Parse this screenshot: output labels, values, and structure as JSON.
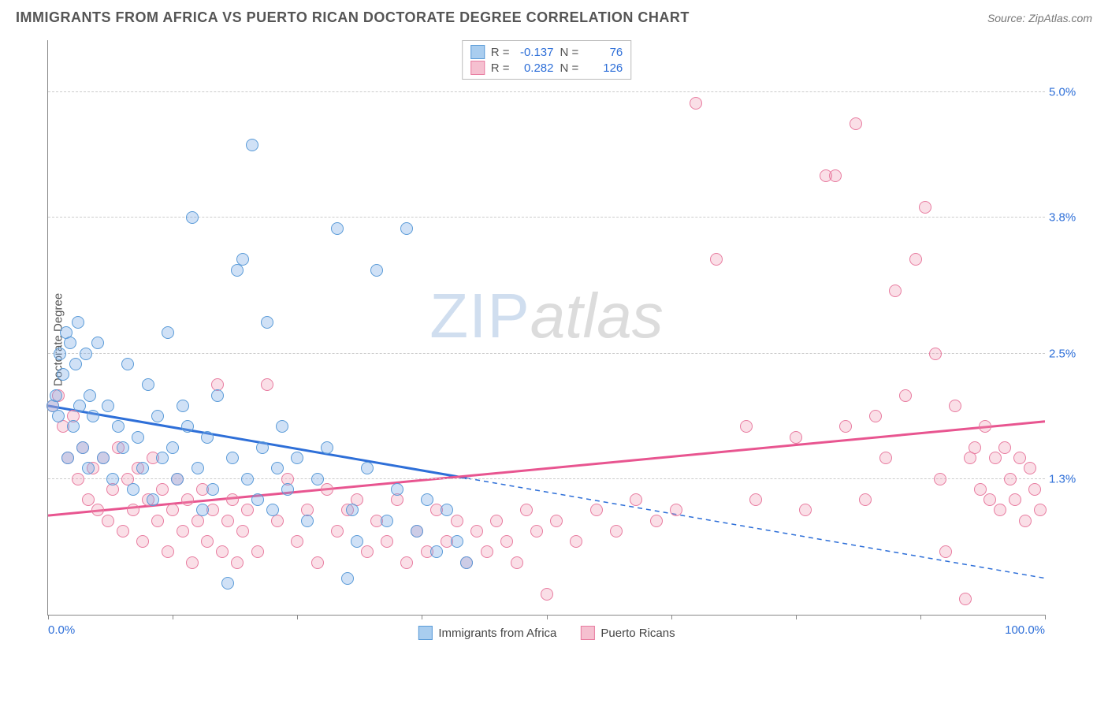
{
  "header": {
    "title": "IMMIGRANTS FROM AFRICA VS PUERTO RICAN DOCTORATE DEGREE CORRELATION CHART",
    "source_prefix": "Source: ",
    "source_name": "ZipAtlas.com"
  },
  "chart": {
    "type": "scatter",
    "ylabel": "Doctorate Degree",
    "xlim": [
      0,
      100
    ],
    "ylim": [
      0,
      5.5
    ],
    "background_color": "#ffffff",
    "grid_color": "#cccccc",
    "axis_color": "#888888",
    "tick_label_color": "#2e6fd8",
    "tick_fontsize": 15,
    "label_fontsize": 15,
    "yticks": [
      {
        "v": 1.3,
        "label": "1.3%"
      },
      {
        "v": 2.5,
        "label": "2.5%"
      },
      {
        "v": 3.8,
        "label": "3.8%"
      },
      {
        "v": 5.0,
        "label": "5.0%"
      }
    ],
    "xtick_positions": [
      0,
      12.5,
      25,
      37.5,
      50,
      62.5,
      75,
      87.5,
      100
    ],
    "xtick_labels": {
      "0": "0.0%",
      "100": "100.0%"
    },
    "watermark": {
      "zip": "ZIP",
      "atlas": "atlas"
    }
  },
  "series": {
    "africa": {
      "label": "Immigrants from Africa",
      "legend_label": "Immigrants from Africa",
      "fill": "rgba(120,170,230,0.35)",
      "stroke": "#5a9bd8",
      "swatch_fill": "#a9cdef",
      "swatch_border": "#5a9bd8",
      "marker_radius": 8,
      "R": "-0.137",
      "N": "76",
      "trend": {
        "y_at_x0": 2.0,
        "y_at_x100": 0.35,
        "solid_until_x": 42,
        "color": "#2e6fd8",
        "width": 3
      },
      "points": [
        [
          0.5,
          2.0
        ],
        [
          0.8,
          2.1
        ],
        [
          1.0,
          1.9
        ],
        [
          1.2,
          2.5
        ],
        [
          1.5,
          2.3
        ],
        [
          1.8,
          2.7
        ],
        [
          2.0,
          1.5
        ],
        [
          2.2,
          2.6
        ],
        [
          2.5,
          1.8
        ],
        [
          2.8,
          2.4
        ],
        [
          3.0,
          2.8
        ],
        [
          3.2,
          2.0
        ],
        [
          3.5,
          1.6
        ],
        [
          3.8,
          2.5
        ],
        [
          4.0,
          1.4
        ],
        [
          4.2,
          2.1
        ],
        [
          4.5,
          1.9
        ],
        [
          5.0,
          2.6
        ],
        [
          5.5,
          1.5
        ],
        [
          6.0,
          2.0
        ],
        [
          6.5,
          1.3
        ],
        [
          7.0,
          1.8
        ],
        [
          7.5,
          1.6
        ],
        [
          8.0,
          2.4
        ],
        [
          8.5,
          1.2
        ],
        [
          9.0,
          1.7
        ],
        [
          9.5,
          1.4
        ],
        [
          10.0,
          2.2
        ],
        [
          10.5,
          1.1
        ],
        [
          11.0,
          1.9
        ],
        [
          11.5,
          1.5
        ],
        [
          12.0,
          2.7
        ],
        [
          12.5,
          1.6
        ],
        [
          13.0,
          1.3
        ],
        [
          13.5,
          2.0
        ],
        [
          14.0,
          1.8
        ],
        [
          14.5,
          3.8
        ],
        [
          15.0,
          1.4
        ],
        [
          15.5,
          1.0
        ],
        [
          16.0,
          1.7
        ],
        [
          16.5,
          1.2
        ],
        [
          17.0,
          2.1
        ],
        [
          18.0,
          0.3
        ],
        [
          18.5,
          1.5
        ],
        [
          19.0,
          3.3
        ],
        [
          19.5,
          3.4
        ],
        [
          20.0,
          1.3
        ],
        [
          20.5,
          4.5
        ],
        [
          21.0,
          1.1
        ],
        [
          21.5,
          1.6
        ],
        [
          22.0,
          2.8
        ],
        [
          22.5,
          1.0
        ],
        [
          23.0,
          1.4
        ],
        [
          23.5,
          1.8
        ],
        [
          24.0,
          1.2
        ],
        [
          25.0,
          1.5
        ],
        [
          26.0,
          0.9
        ],
        [
          27.0,
          1.3
        ],
        [
          28.0,
          1.6
        ],
        [
          29.0,
          3.7
        ],
        [
          30.0,
          0.35
        ],
        [
          30.5,
          1.0
        ],
        [
          31.0,
          0.7
        ],
        [
          32.0,
          1.4
        ],
        [
          33.0,
          3.3
        ],
        [
          34.0,
          0.9
        ],
        [
          35.0,
          1.2
        ],
        [
          36.0,
          3.7
        ],
        [
          37.0,
          0.8
        ],
        [
          38.0,
          1.1
        ],
        [
          39.0,
          0.6
        ],
        [
          40.0,
          1.0
        ],
        [
          41.0,
          0.7
        ],
        [
          42.0,
          0.5
        ]
      ]
    },
    "pr": {
      "label": "Puerto Ricans",
      "legend_label": "Puerto Ricans",
      "fill": "rgba(240,150,175,0.3)",
      "stroke": "#e87ca0",
      "swatch_fill": "#f5c0d0",
      "swatch_border": "#e87ca0",
      "marker_radius": 8,
      "R": "0.282",
      "N": "126",
      "trend": {
        "y_at_x0": 0.95,
        "y_at_x100": 1.85,
        "color": "#e85590",
        "width": 3
      },
      "points": [
        [
          0.5,
          2.0
        ],
        [
          1.0,
          2.1
        ],
        [
          1.5,
          1.8
        ],
        [
          2.0,
          1.5
        ],
        [
          2.5,
          1.9
        ],
        [
          3.0,
          1.3
        ],
        [
          3.5,
          1.6
        ],
        [
          4.0,
          1.1
        ],
        [
          4.5,
          1.4
        ],
        [
          5.0,
          1.0
        ],
        [
          5.5,
          1.5
        ],
        [
          6.0,
          0.9
        ],
        [
          6.5,
          1.2
        ],
        [
          7.0,
          1.6
        ],
        [
          7.5,
          0.8
        ],
        [
          8.0,
          1.3
        ],
        [
          8.5,
          1.0
        ],
        [
          9.0,
          1.4
        ],
        [
          9.5,
          0.7
        ],
        [
          10.0,
          1.1
        ],
        [
          10.5,
          1.5
        ],
        [
          11.0,
          0.9
        ],
        [
          11.5,
          1.2
        ],
        [
          12.0,
          0.6
        ],
        [
          12.5,
          1.0
        ],
        [
          13.0,
          1.3
        ],
        [
          13.5,
          0.8
        ],
        [
          14.0,
          1.1
        ],
        [
          14.5,
          0.5
        ],
        [
          15.0,
          0.9
        ],
        [
          15.5,
          1.2
        ],
        [
          16.0,
          0.7
        ],
        [
          16.5,
          1.0
        ],
        [
          17.0,
          2.2
        ],
        [
          17.5,
          0.6
        ],
        [
          18.0,
          0.9
        ],
        [
          18.5,
          1.1
        ],
        [
          19.0,
          0.5
        ],
        [
          19.5,
          0.8
        ],
        [
          20.0,
          1.0
        ],
        [
          21.0,
          0.6
        ],
        [
          22.0,
          2.2
        ],
        [
          23.0,
          0.9
        ],
        [
          24.0,
          1.3
        ],
        [
          25.0,
          0.7
        ],
        [
          26.0,
          1.0
        ],
        [
          27.0,
          0.5
        ],
        [
          28.0,
          1.2
        ],
        [
          29.0,
          0.8
        ],
        [
          30.0,
          1.0
        ],
        [
          31.0,
          1.1
        ],
        [
          32.0,
          0.6
        ],
        [
          33.0,
          0.9
        ],
        [
          34.0,
          0.7
        ],
        [
          35.0,
          1.1
        ],
        [
          36.0,
          0.5
        ],
        [
          37.0,
          0.8
        ],
        [
          38.0,
          0.6
        ],
        [
          39.0,
          1.0
        ],
        [
          40.0,
          0.7
        ],
        [
          41.0,
          0.9
        ],
        [
          42.0,
          0.5
        ],
        [
          43.0,
          0.8
        ],
        [
          44.0,
          0.6
        ],
        [
          45.0,
          0.9
        ],
        [
          46.0,
          0.7
        ],
        [
          47.0,
          0.5
        ],
        [
          48.0,
          1.0
        ],
        [
          49.0,
          0.8
        ],
        [
          50.0,
          0.2
        ],
        [
          51.0,
          0.9
        ],
        [
          53.0,
          0.7
        ],
        [
          55.0,
          1.0
        ],
        [
          57.0,
          0.8
        ],
        [
          59.0,
          1.1
        ],
        [
          61.0,
          0.9
        ],
        [
          63.0,
          1.0
        ],
        [
          65.0,
          4.9
        ],
        [
          67.0,
          3.4
        ],
        [
          70.0,
          1.8
        ],
        [
          71.0,
          1.1
        ],
        [
          75.0,
          1.7
        ],
        [
          76.0,
          1.0
        ],
        [
          78.0,
          4.2
        ],
        [
          79.0,
          4.2
        ],
        [
          80.0,
          1.8
        ],
        [
          81.0,
          4.7
        ],
        [
          82.0,
          1.1
        ],
        [
          83.0,
          1.9
        ],
        [
          84.0,
          1.5
        ],
        [
          85.0,
          3.1
        ],
        [
          86.0,
          2.1
        ],
        [
          87.0,
          3.4
        ],
        [
          88.0,
          3.9
        ],
        [
          89.0,
          2.5
        ],
        [
          89.5,
          1.3
        ],
        [
          90.0,
          0.6
        ],
        [
          91.0,
          2.0
        ],
        [
          92.0,
          0.15
        ],
        [
          92.5,
          1.5
        ],
        [
          93.0,
          1.6
        ],
        [
          93.5,
          1.2
        ],
        [
          94.0,
          1.8
        ],
        [
          94.5,
          1.1
        ],
        [
          95.0,
          1.5
        ],
        [
          95.5,
          1.0
        ],
        [
          96.0,
          1.6
        ],
        [
          96.5,
          1.3
        ],
        [
          97.0,
          1.1
        ],
        [
          97.5,
          1.5
        ],
        [
          98.0,
          0.9
        ],
        [
          98.5,
          1.4
        ],
        [
          99.0,
          1.2
        ],
        [
          99.5,
          1.0
        ]
      ]
    }
  }
}
